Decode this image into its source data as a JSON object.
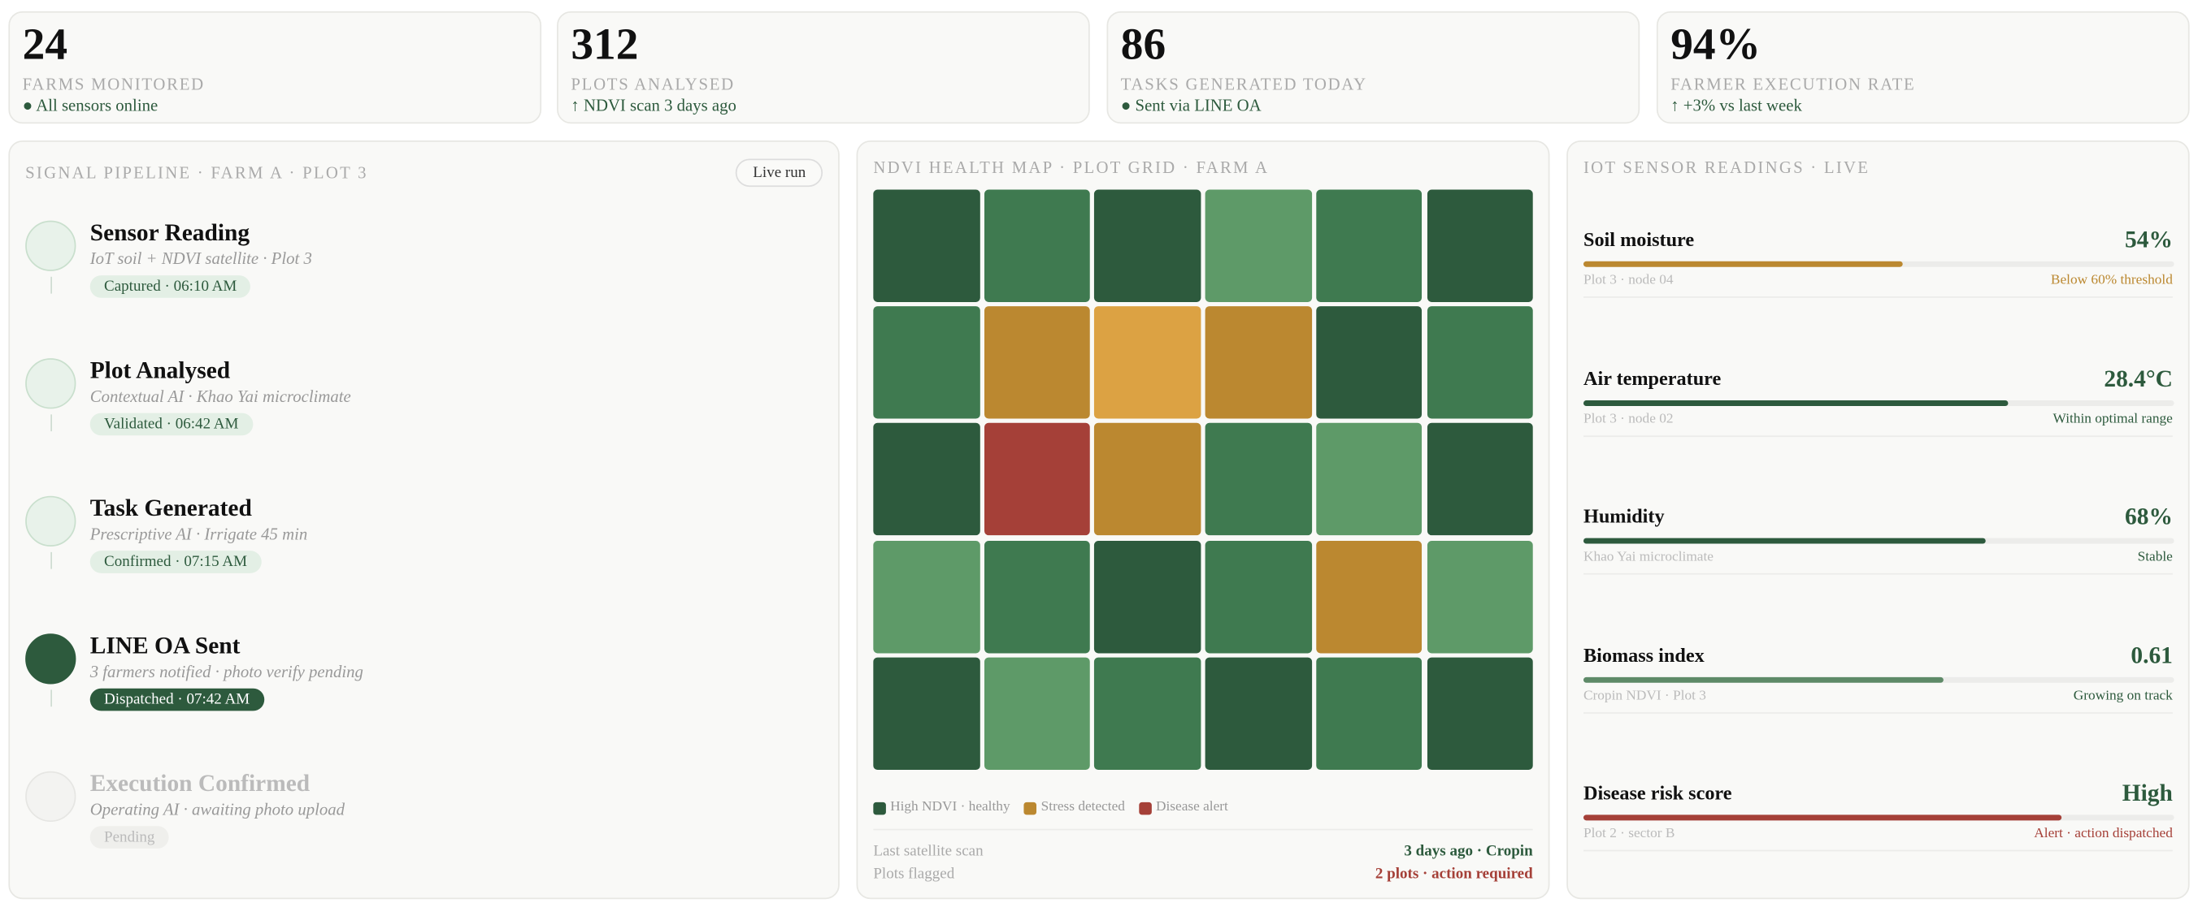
{
  "kpis": [
    {
      "value": 24,
      "label": "FARMS MONITORED",
      "note": "● All sensors online"
    },
    {
      "value": 312,
      "label": "PLOTS ANALYSED",
      "note": "↑ NDVI scan 3 days ago"
    },
    {
      "value": 86,
      "label": "TASKS GENERATED TODAY",
      "note": "● Sent via LINE OA"
    },
    {
      "value": "94%",
      "label": "FARMER EXECUTION RATE",
      "note": "↑ +3% vs last week"
    }
  ],
  "pipeline": {
    "title": "SIGNAL PIPELINE · FARM A · PLOT 3",
    "action": "Live run",
    "steps": [
      {
        "title": "Sensor Reading",
        "detail": "IoT soil + NDVI satellite · Plot 3",
        "badge": "Captured · 06:10 AM",
        "status": "done"
      },
      {
        "title": "Plot Analysed",
        "detail": "Contextual AI · Khao Yai microclimate",
        "badge": "Validated · 06:42 AM",
        "status": "done"
      },
      {
        "title": "Task Generated",
        "detail": "Prescriptive AI · Irrigate 45 min",
        "badge": "Confirmed · 07:15 AM",
        "status": "done"
      },
      {
        "title": "LINE OA Sent",
        "detail": "3 farmers notified · photo verify pending",
        "badge": "Dispatched · 07:42 AM",
        "status": "active"
      },
      {
        "title": "Execution Confirmed",
        "detail": "Operating AI · awaiting photo upload",
        "badge": "Pending",
        "status": "pending"
      }
    ]
  },
  "ndvi": {
    "title": "NDVI HEALTH MAP · PLOT GRID · FARM A",
    "grid": [
      [
        "#2d5a3d",
        "#3f7a50",
        "#2d5a3d",
        "#5e9a68",
        "#3f7a50",
        "#2d5a3d"
      ],
      [
        "#3f7a50",
        "#bb8830",
        "#dca243",
        "#bb8830",
        "#2d5a3d",
        "#3f7a50"
      ],
      [
        "#2d5a3d",
        "#a54038",
        "#bb8830",
        "#3f7a50",
        "#5e9a68",
        "#2d5a3d"
      ],
      [
        "#5e9a68",
        "#3f7a50",
        "#2d5a3d",
        "#3f7a50",
        "#bb8830",
        "#5e9a68"
      ],
      [
        "#2d5a3d",
        "#5e9a68",
        "#3f7a50",
        "#2d5a3d",
        "#3f7a50",
        "#2d5a3d"
      ]
    ],
    "legend": [
      {
        "label": "High NDVI · healthy",
        "color": "#2d5a3d"
      },
      {
        "label": "Stress detected",
        "color": "#bb8830"
      },
      {
        "label": "Disease alert",
        "color": "#a54038"
      }
    ],
    "rows": [
      {
        "label": "Last satellite scan",
        "value": "3 days ago · Cropin",
        "color": "#2d5a3d"
      },
      {
        "label": "Plots flagged",
        "value": "2 plots · action required",
        "color": "#a54038"
      }
    ]
  },
  "sensors": {
    "title": "IOT SENSOR READINGS · LIVE",
    "items": [
      {
        "name": "Soil moisture",
        "value": "54%",
        "level": 54,
        "source": "Plot 3 · node 04",
        "note": "Below 60% threshold",
        "color": "#bb8830",
        "note_color": "#bb8830"
      },
      {
        "name": "Air temperature",
        "value": "28.4°C",
        "level": 72,
        "source": "Plot 3 · node 02",
        "note": "Within optimal range",
        "color": "#2d5a3d",
        "note_color": "#2d5a3d"
      },
      {
        "name": "Humidity",
        "value": "68%",
        "level": 68,
        "source": "Khao Yai microclimate",
        "note": "Stable",
        "color": "#2d5a3d",
        "note_color": "#2d5a3d"
      },
      {
        "name": "Biomass index",
        "value": "0.61",
        "level": 61,
        "source": "Cropin NDVI · Plot 3",
        "note": "Growing on track",
        "color": "#5e8a68",
        "note_color": "#2d5a3d"
      },
      {
        "name": "Disease risk score",
        "value": "High",
        "level": 81,
        "source": "Plot 2 · sector B",
        "note": "Alert · action dispatched",
        "color": "#a54038",
        "note_color": "#a54038"
      }
    ]
  }
}
